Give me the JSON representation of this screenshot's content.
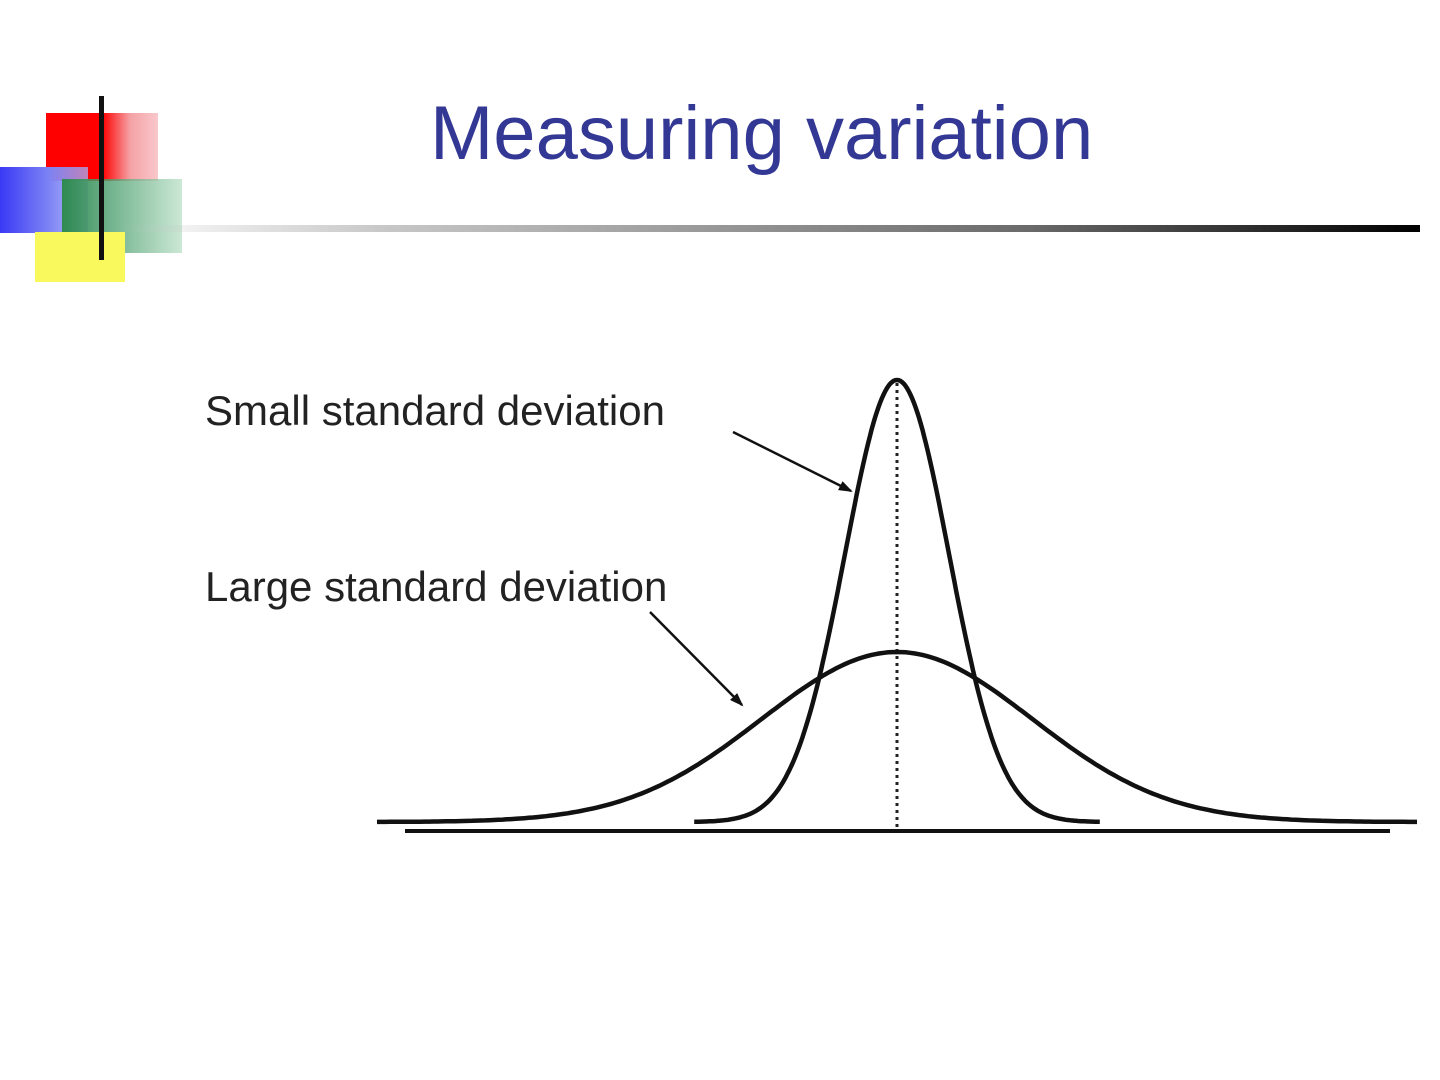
{
  "slide": {
    "title": "Measuring variation",
    "title_color": "#343895"
  },
  "logo": {
    "icon": "color-blocks-logo-icon",
    "colors": {
      "red": "#ff0000",
      "blue": "#3a3af5",
      "green": "#2f8a50",
      "yellow": "#f9f85c"
    }
  },
  "diagram": {
    "labels": {
      "small": "Small standard deviation",
      "large": "Large standard deviation"
    },
    "curves": [
      {
        "id": "small",
        "mean": 0,
        "sd": 1,
        "x_range": [
          -3.9,
          3.9
        ]
      },
      {
        "id": "large",
        "mean": 0,
        "sd": 2.6,
        "x_range": [
          -10,
          10
        ]
      }
    ],
    "mean_line": "dotted"
  }
}
